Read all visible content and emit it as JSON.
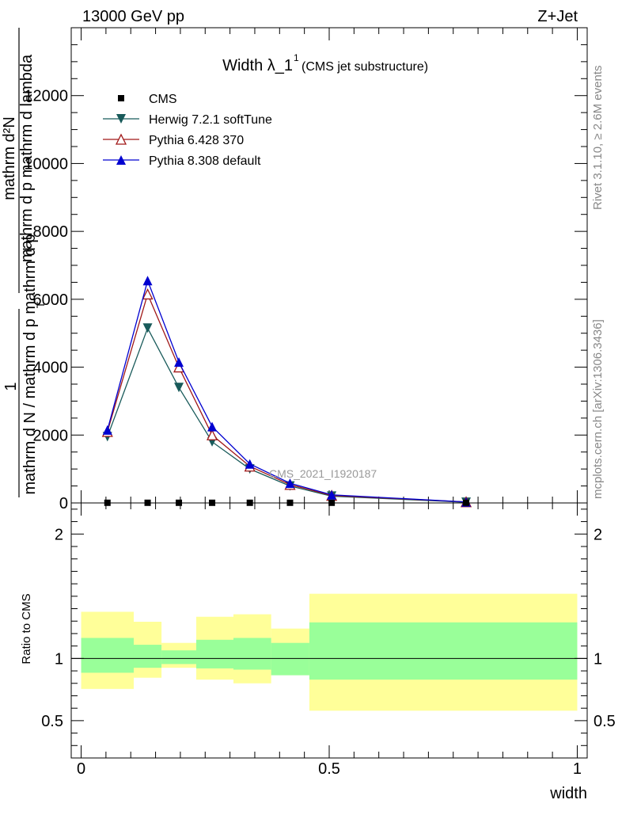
{
  "header": {
    "left": "13000 GeV pp",
    "right": "Z+Jet"
  },
  "side_labels": {
    "rivet": "Rivet 3.1.10, ≥ 2.6M events",
    "mcplots": "mcplots.cern.ch [arXiv:1306.3436]"
  },
  "chart_data": [
    {
      "panel": "main",
      "type": "line",
      "title_main": "Width λ_1",
      "title_sup": "1",
      "title_paren": "(CMS jet substructure)",
      "watermark": "CMS_2021_I1920187",
      "ylabel": {
        "one": "1",
        "num_line1": "mathrm d²N",
        "num_line2": "mathrm d p mathrm d lambda",
        "den_line1": "mathrm d N / mathrm d p mathrm d p",
        "den_sub": "T"
      },
      "xlim": [
        -0.02,
        1.02
      ],
      "ylim": [
        0,
        14000
      ],
      "yticks": [
        0,
        2000,
        4000,
        6000,
        8000,
        10000,
        12000
      ],
      "ytick_labels": [
        "0",
        "2000",
        "4000",
        "6000",
        "8000",
        "10000",
        "12000"
      ],
      "legend_position": "top-left",
      "series": [
        {
          "name": "CMS",
          "marker": "square",
          "color": "#000000",
          "x": [
            0.053,
            0.134,
            0.197,
            0.264,
            0.34,
            0.421,
            0.505,
            0.776
          ],
          "y": [
            5,
            5,
            5,
            5,
            5,
            5,
            5,
            5
          ]
        },
        {
          "name": "Herwig 7.2.1 softTune",
          "marker": "triangle-down",
          "color": "#185a5a",
          "x": [
            0.053,
            0.134,
            0.197,
            0.264,
            0.34,
            0.421,
            0.505,
            0.776
          ],
          "y": [
            1950,
            5150,
            3400,
            1800,
            1000,
            500,
            200,
            20
          ]
        },
        {
          "name": "Pythia 6.428 370",
          "marker": "triangle-open",
          "color": "#a01818",
          "x": [
            0.053,
            0.134,
            0.197,
            0.264,
            0.34,
            0.421,
            0.505,
            0.776
          ],
          "y": [
            2100,
            6150,
            4000,
            2000,
            1080,
            540,
            220,
            30
          ]
        },
        {
          "name": "Pythia 8.308 default",
          "marker": "triangle-up",
          "color": "#0000d0",
          "x": [
            0.053,
            0.134,
            0.197,
            0.264,
            0.34,
            0.421,
            0.505,
            0.776
          ],
          "y": [
            2150,
            6550,
            4150,
            2250,
            1150,
            580,
            240,
            30
          ]
        }
      ]
    },
    {
      "panel": "ratio",
      "type": "area",
      "ylabel": "Ratio to CMS",
      "xlabel": "width",
      "xlim": [
        -0.02,
        1.02
      ],
      "ylim": [
        0.2,
        2.25
      ],
      "yticks": [
        0.5,
        1,
        2
      ],
      "ytick_labels": [
        "0.5",
        "1",
        "2"
      ],
      "xticks": [
        0,
        0.5,
        1
      ],
      "xtick_labels": [
        "0",
        "0.5",
        "1"
      ],
      "reference_line": 1,
      "bands": [
        {
          "x_lo": 0.0,
          "x_hi": 0.106,
          "inner": [
            0.885,
            1.165
          ],
          "outer": [
            0.755,
            1.375
          ]
        },
        {
          "x_lo": 0.106,
          "x_hi": 0.162,
          "inner": [
            0.925,
            1.11
          ],
          "outer": [
            0.845,
            1.295
          ]
        },
        {
          "x_lo": 0.162,
          "x_hi": 0.232,
          "inner": [
            0.955,
            1.065
          ],
          "outer": [
            0.925,
            1.125
          ]
        },
        {
          "x_lo": 0.232,
          "x_hi": 0.307,
          "inner": [
            0.92,
            1.15
          ],
          "outer": [
            0.83,
            1.335
          ]
        },
        {
          "x_lo": 0.307,
          "x_hi": 0.383,
          "inner": [
            0.91,
            1.165
          ],
          "outer": [
            0.8,
            1.355
          ]
        },
        {
          "x_lo": 0.383,
          "x_hi": 0.46,
          "inner": [
            0.865,
            1.125
          ],
          "outer": [
            0.865,
            1.24
          ]
        },
        {
          "x_lo": 0.46,
          "x_hi": 1.0,
          "inner": [
            0.83,
            1.29
          ],
          "outer": [
            0.58,
            1.52
          ]
        }
      ],
      "inner_color": "#99ff99",
      "outer_color": "#ffff99"
    }
  ]
}
